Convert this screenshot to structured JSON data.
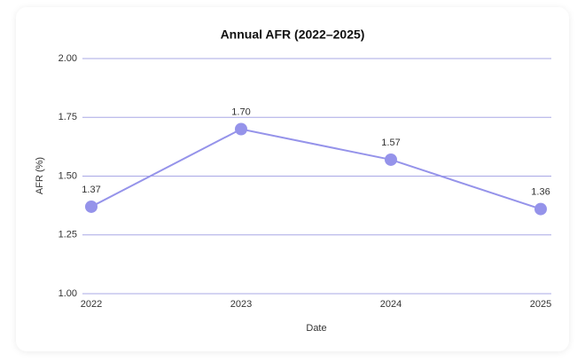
{
  "chart_data": {
    "type": "line",
    "title": "Annual AFR (2022–2025)",
    "x_label": "Date",
    "y_label": "AFR (%)",
    "categories": [
      "2022",
      "2023",
      "2024",
      "2025"
    ],
    "values": [
      1.37,
      1.7,
      1.57,
      1.36
    ],
    "value_labels": [
      "1.37",
      "1.70",
      "1.57",
      "1.36"
    ],
    "color": "#9593ea",
    "ylim": [
      1,
      2
    ],
    "yticks": [
      {
        "value": 1,
        "label": "1.00"
      },
      {
        "value": 1.25,
        "label": "1.25"
      },
      {
        "value": 1.5,
        "label": "1.50"
      },
      {
        "value": 1.75,
        "label": "1.75"
      },
      {
        "value": 2,
        "label": "2.00"
      }
    ],
    "grid": true
  }
}
